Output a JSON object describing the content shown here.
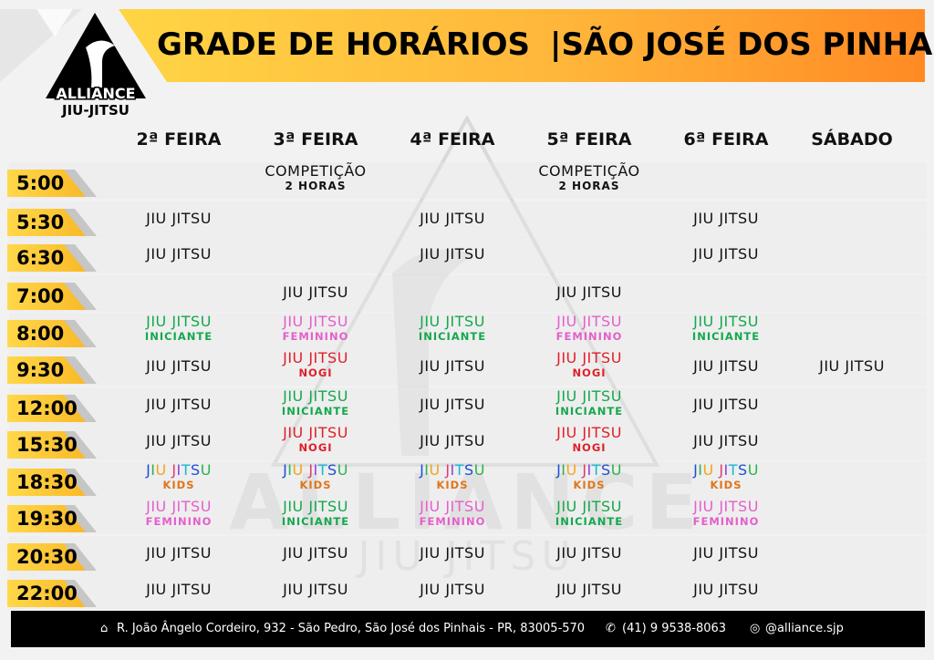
{
  "header": {
    "logo_text": "ALLIANCE",
    "logo_sub": "JIU-JITSU",
    "title_main": "GRADE DE HORÁRIOS",
    "title_location": "|SÃO JOSÉ DOS PINHAIS"
  },
  "watermark": {
    "line1": "ALLIANCE",
    "line2": "JIU JITSU"
  },
  "days": [
    "2ª FEIRA",
    "3ª FEIRA",
    "4ª FEIRA",
    "5ª FEIRA",
    "6ª FEIRA",
    "SÁBADO"
  ],
  "schedule": [
    {
      "time": "5:00",
      "cells": [
        null,
        {
          "name": "COMPETIÇÃO",
          "sub": "2 HORAS",
          "style": "plain"
        },
        null,
        {
          "name": "COMPETIÇÃO",
          "sub": "2 HORAS",
          "style": "plain"
        },
        null,
        null
      ]
    },
    {
      "time": "5:30",
      "cells": [
        {
          "name": "JIU JITSU",
          "style": "plain"
        },
        null,
        {
          "name": "JIU JITSU",
          "style": "plain"
        },
        null,
        {
          "name": "JIU JITSU",
          "style": "plain"
        },
        null
      ]
    },
    {
      "time": "6:30",
      "cells": [
        {
          "name": "JIU JITSU",
          "style": "plain"
        },
        null,
        {
          "name": "JIU JITSU",
          "style": "plain"
        },
        null,
        {
          "name": "JIU JITSU",
          "style": "plain"
        },
        null
      ]
    },
    {
      "time": "7:00",
      "cells": [
        null,
        {
          "name": "JIU JITSU",
          "style": "plain"
        },
        null,
        {
          "name": "JIU JITSU",
          "style": "plain"
        },
        null,
        null
      ]
    },
    {
      "time": "8:00",
      "cells": [
        {
          "name": "JIU JITSU",
          "sub": "INICIANTE",
          "style": "green"
        },
        {
          "name": "JIU JITSU",
          "sub": "FEMININO",
          "style": "pink"
        },
        {
          "name": "JIU JITSU",
          "sub": "INICIANTE",
          "style": "green"
        },
        {
          "name": "JIU JITSU",
          "sub": "FEMININO",
          "style": "pink"
        },
        {
          "name": "JIU JITSU",
          "sub": "INICIANTE",
          "style": "green"
        },
        null
      ]
    },
    {
      "time": "9:30",
      "cells": [
        {
          "name": "JIU JITSU",
          "style": "plain"
        },
        {
          "name": "JIU JITSU",
          "sub": "NOGI",
          "style": "red"
        },
        {
          "name": "JIU JITSU",
          "style": "plain"
        },
        {
          "name": "JIU JITSU",
          "sub": "NOGI",
          "style": "red"
        },
        {
          "name": "JIU JITSU",
          "style": "plain"
        },
        {
          "name": "JIU JITSU",
          "style": "plain"
        }
      ]
    },
    {
      "time": "12:00",
      "cells": [
        {
          "name": "JIU JITSU",
          "style": "plain"
        },
        {
          "name": "JIU JITSU",
          "sub": "INICIANTE",
          "style": "green"
        },
        {
          "name": "JIU JITSU",
          "style": "plain"
        },
        {
          "name": "JIU JITSU",
          "sub": "INICIANTE",
          "style": "green"
        },
        {
          "name": "JIU JITSU",
          "style": "plain"
        },
        null
      ]
    },
    {
      "time": "15:30",
      "cells": [
        {
          "name": "JIU JITSU",
          "style": "plain"
        },
        {
          "name": "JIU JITSU",
          "sub": "NOGI",
          "style": "red"
        },
        {
          "name": "JIU JITSU",
          "style": "plain"
        },
        {
          "name": "JIU JITSU",
          "sub": "NOGI",
          "style": "red"
        },
        {
          "name": "JIU JITSU",
          "style": "plain"
        },
        null
      ]
    },
    {
      "time": "18:30",
      "cells": [
        {
          "name": "JIU JITSU",
          "sub": "KIDS",
          "style": "kids"
        },
        {
          "name": "JIU JITSU",
          "sub": "KIDS",
          "style": "kids"
        },
        {
          "name": "JIU JITSU",
          "sub": "KIDS",
          "style": "kids"
        },
        {
          "name": "JIU JITSU",
          "sub": "KIDS",
          "style": "kids"
        },
        {
          "name": "JIU JITSU",
          "sub": "KIDS",
          "style": "kids"
        },
        null
      ]
    },
    {
      "time": "19:30",
      "cells": [
        {
          "name": "JIU JITSU",
          "sub": "FEMININO",
          "style": "pink"
        },
        {
          "name": "JIU JITSU",
          "sub": "INICIANTE",
          "style": "green"
        },
        {
          "name": "JIU JITSU",
          "sub": "FEMININO",
          "style": "pink"
        },
        {
          "name": "JIU JITSU",
          "sub": "INICIANTE",
          "style": "green"
        },
        {
          "name": "JIU JITSU",
          "sub": "FEMININO",
          "style": "pink"
        },
        null
      ]
    },
    {
      "time": "20:30",
      "cells": [
        {
          "name": "JIU JITSU",
          "style": "plain"
        },
        {
          "name": "JIU JITSU",
          "style": "plain"
        },
        {
          "name": "JIU JITSU",
          "style": "plain"
        },
        {
          "name": "JIU JITSU",
          "style": "plain"
        },
        {
          "name": "JIU JITSU",
          "style": "plain"
        },
        null
      ]
    },
    {
      "time": "22:00",
      "cells": [
        {
          "name": "JIU JITSU",
          "style": "plain"
        },
        {
          "name": "JIU JITSU",
          "style": "plain"
        },
        {
          "name": "JIU JITSU",
          "style": "plain"
        },
        {
          "name": "JIU JITSU",
          "style": "plain"
        },
        {
          "name": "JIU JITSU",
          "style": "plain"
        },
        null
      ]
    }
  ],
  "footer": {
    "address_icon": "home-icon",
    "address": "R. João Ângelo Cordeiro, 932 - São Pedro, São José dos Pinhais - PR, 83005-570",
    "phone_icon": "whatsapp-icon",
    "phone": "(41) 9 9538-8063",
    "instagram_icon": "instagram-icon",
    "instagram": "@alliance.sjp"
  },
  "colors": {
    "accent_yellow": "#ffd545",
    "accent_orange": "#ff8a24",
    "green": "#14a84d",
    "pink": "#e45fcb",
    "red": "#df1f2a",
    "kids_sub": "#e0751a"
  }
}
